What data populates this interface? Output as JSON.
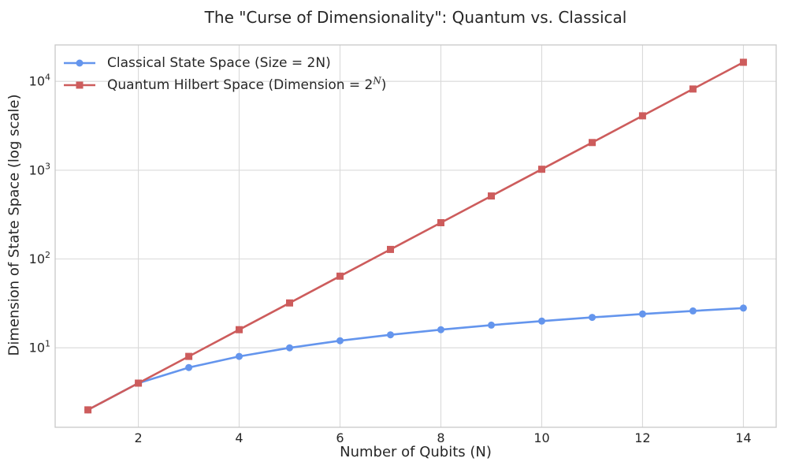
{
  "chart_data": {
    "type": "line",
    "title": "The \"Curse of Dimensionality\": Quantum vs. Classical",
    "xlabel": "Number of Qubits (N)",
    "ylabel": "Dimension of State Space (log scale)",
    "x": [
      1,
      2,
      3,
      4,
      5,
      6,
      7,
      8,
      9,
      10,
      11,
      12,
      13,
      14
    ],
    "series": [
      {
        "name": "Classical State Space (Size = 2N)",
        "color": "#6495ED",
        "marker": "circle",
        "values": [
          2,
          4,
          6,
          8,
          10,
          12,
          14,
          16,
          18,
          20,
          22,
          24,
          26,
          28
        ]
      },
      {
        "name": "Quantum Hilbert Space (Dimension = 2^N)",
        "color": "#CD5C5C",
        "marker": "square",
        "values": [
          2,
          4,
          8,
          16,
          32,
          64,
          128,
          256,
          512,
          1024,
          2048,
          4096,
          8192,
          16384
        ]
      }
    ],
    "xticks": [
      2,
      4,
      6,
      8,
      10,
      12,
      14
    ],
    "yticks": [
      "10^1",
      "10^2",
      "10^3",
      "10^4"
    ],
    "yscale": "log",
    "xlim": [
      0.35,
      14.65
    ],
    "ylim_log10": [
      0.105,
      4.41
    ],
    "grid": true,
    "legend_position": "upper-left",
    "colors": {
      "grid": "#D9D9D9",
      "spine": "#C8C8C8",
      "text": "#262626",
      "background": "#FFFFFF"
    }
  }
}
